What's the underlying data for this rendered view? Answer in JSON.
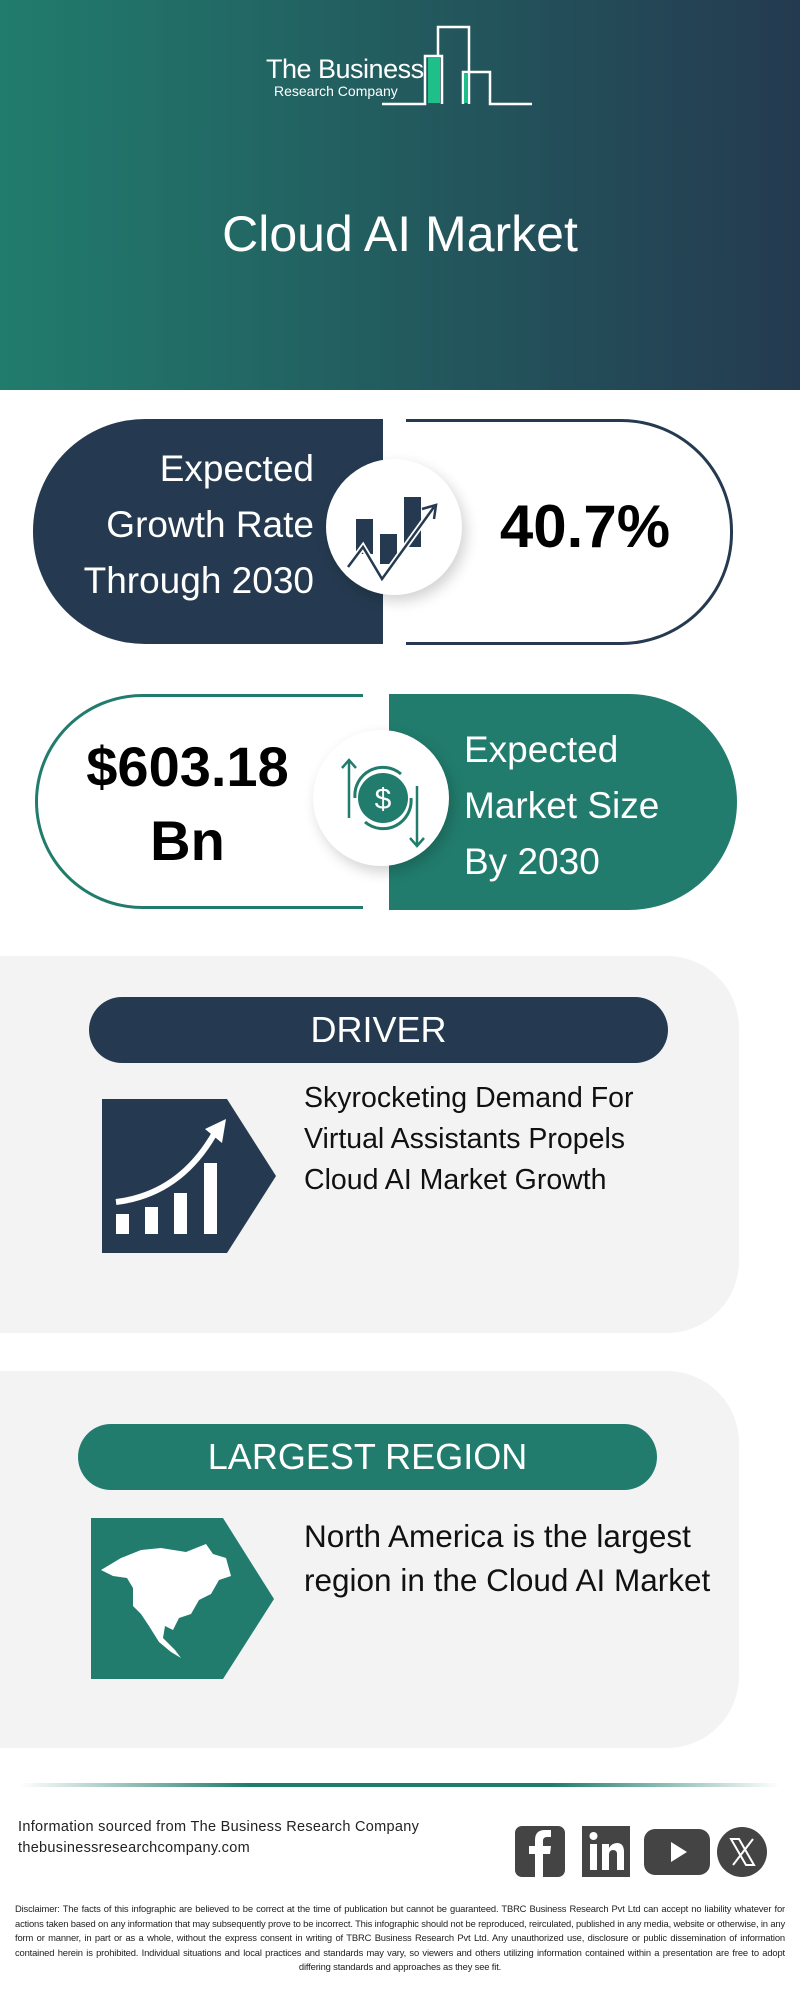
{
  "header": {
    "logo_line1": "The Business",
    "logo_line2": "Research Company",
    "title": "Cloud AI Market",
    "gradient_colors": [
      "#217c6d",
      "#243a50"
    ]
  },
  "growth_card": {
    "label_lines": [
      "Expected",
      "Growth Rate",
      "Through 2030"
    ],
    "value": "40.7%",
    "icon": "growth-chart-icon",
    "color": "#253a50"
  },
  "size_card": {
    "value_lines": [
      "$603.18",
      "Bn"
    ],
    "label_lines": [
      "Expected",
      "Market Size",
      "By 2030"
    ],
    "icon": "dollar-cycle-icon",
    "color": "#217c6d"
  },
  "driver": {
    "heading": "DRIVER",
    "text_lines": [
      "Skyrocketing Demand For",
      "Virtual Assistants Propels",
      "Cloud AI Market Growth"
    ],
    "icon": "rising-bar-chart-icon"
  },
  "region": {
    "heading": "LARGEST REGION",
    "text_lines": [
      "North America is the largest",
      "region in the Cloud AI Market"
    ],
    "icon": "north-america-map-icon"
  },
  "footer": {
    "source": "Information sourced from The Business Research Company",
    "website": "thebusinessresearchcompany.com",
    "social": [
      "facebook-icon",
      "linkedin-icon",
      "youtube-icon",
      "x-icon"
    ],
    "disclaimer": "Disclaimer: The facts of this infographic are believed to be correct at the time of publication but cannot be guaranteed. TBRC Business Research Pvt Ltd can accept no liability whatever for actions taken based on any information that may subsequently prove to be incorrect. This infographic should not be reproduced, reirculated, published in any media, website or otherwise, in any form or manner, in part or as a whole, without the express consent in writing of TBRC Business Research Pvt Ltd. Any unauthorized use, disclosure or public dissemination of information contained herein is prohibited. Individual situations and local practices and standards may vary, so viewers and others utilizing information contained within a presentation are free to adopt differing standards and approaches as they see fit."
  }
}
